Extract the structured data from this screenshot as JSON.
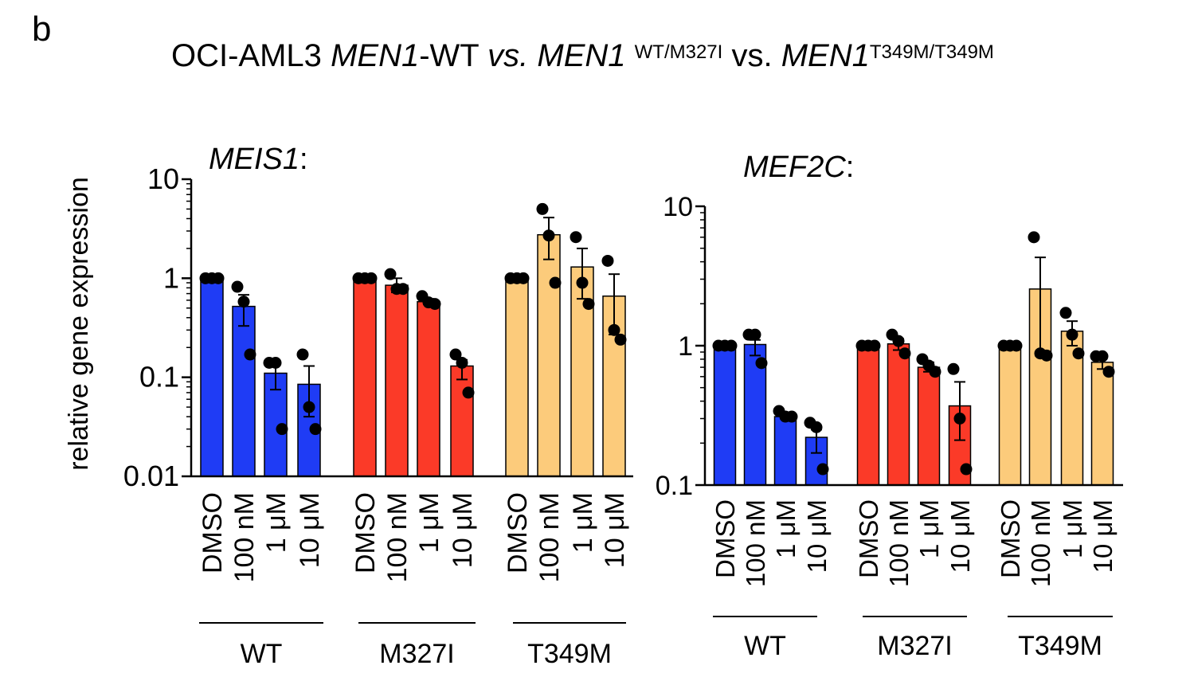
{
  "panel_letter": "b",
  "title": {
    "cell_line": "OCI-AML3",
    "gene1": "MEN1",
    "wt_suffix": "-WT",
    "vs1": "vs.",
    "gene2": "MEN1",
    "sup1": "WT/M327I",
    "vs2": "vs.",
    "gene3": "MEN1",
    "sup2": "T349M/T349M"
  },
  "colors": {
    "WT": "#1f3cf5",
    "M327I": "#fb3a28",
    "T349M": "#fccb7b",
    "dot": "#000000",
    "axis": "#000000"
  },
  "chart_data": [
    {
      "type": "bar",
      "gene_label": "MEIS1",
      "gene_suffix": ":",
      "ylabel": "relative gene expression",
      "yscale": "log",
      "ylim": [
        0.01,
        10
      ],
      "ticks": [
        10,
        1,
        0.1,
        0.01
      ],
      "tick_labels": [
        "10",
        "1",
        "0.1",
        "0.01"
      ],
      "categories": [
        "DMSO",
        "100 nM",
        "1 μM",
        "10 μM"
      ],
      "groups": [
        {
          "name": "WT",
          "color_key": "WT",
          "bars": [
            {
              "mean": 1.0,
              "sem": [
                1.0,
                1.0
              ],
              "points": [
                1.0,
                1.0,
                1.0
              ]
            },
            {
              "mean": 0.52,
              "sem": [
                0.33,
                0.68
              ],
              "points": [
                0.82,
                0.58,
                0.17
              ]
            },
            {
              "mean": 0.11,
              "sem": [
                0.075,
                0.14
              ],
              "points": [
                0.14,
                0.14,
                0.03
              ]
            },
            {
              "mean": 0.085,
              "sem": [
                0.04,
                0.13
              ],
              "points": [
                0.17,
                0.05,
                0.03
              ]
            }
          ]
        },
        {
          "name": "M327I",
          "color_key": "M327I",
          "bars": [
            {
              "mean": 1.0,
              "sem": [
                1.0,
                1.0
              ],
              "points": [
                1.0,
                1.0,
                1.0
              ]
            },
            {
              "mean": 0.85,
              "sem": [
                0.72,
                1.0
              ],
              "points": [
                1.1,
                0.78,
                0.78
              ]
            },
            {
              "mean": 0.58,
              "sem": [
                0.55,
                0.62
              ],
              "points": [
                0.66,
                0.57,
                0.55
              ]
            },
            {
              "mean": 0.13,
              "sem": [
                0.095,
                0.15
              ],
              "points": [
                0.17,
                0.14,
                0.07
              ]
            }
          ]
        },
        {
          "name": "T349M",
          "color_key": "T349M",
          "bars": [
            {
              "mean": 1.0,
              "sem": [
                1.0,
                1.0
              ],
              "points": [
                1.0,
                1.0,
                1.0
              ]
            },
            {
              "mean": 2.75,
              "sem": [
                1.55,
                4.1
              ],
              "points": [
                5.0,
                2.7,
                0.9
              ]
            },
            {
              "mean": 1.3,
              "sem": [
                0.62,
                2.0
              ],
              "points": [
                2.6,
                0.9,
                0.55
              ]
            },
            {
              "mean": 0.66,
              "sem": [
                0.27,
                1.1
              ],
              "points": [
                1.5,
                0.3,
                0.24
              ]
            }
          ]
        }
      ]
    },
    {
      "type": "bar",
      "gene_label": "MEF2C",
      "gene_suffix": ":",
      "ylabel": "",
      "yscale": "log",
      "ylim": [
        0.1,
        10
      ],
      "ticks": [
        10,
        1,
        0.1
      ],
      "tick_labels": [
        "10",
        "1",
        "0.1"
      ],
      "categories": [
        "DMSO",
        "100 nM",
        "1 μM",
        "10 μM"
      ],
      "groups": [
        {
          "name": "WT",
          "color_key": "WT",
          "bars": [
            {
              "mean": 1.0,
              "sem": [
                1.0,
                1.0
              ],
              "points": [
                1.0,
                1.0,
                1.0
              ]
            },
            {
              "mean": 1.02,
              "sem": [
                0.85,
                1.1
              ],
              "points": [
                1.2,
                1.2,
                0.75
              ]
            },
            {
              "mean": 0.31,
              "sem": [
                0.3,
                0.33
              ],
              "points": [
                0.34,
                0.31,
                0.31
              ]
            },
            {
              "mean": 0.22,
              "sem": [
                0.17,
                0.25
              ],
              "points": [
                0.28,
                0.26,
                0.13
              ]
            }
          ]
        },
        {
          "name": "M327I",
          "color_key": "M327I",
          "bars": [
            {
              "mean": 1.0,
              "sem": [
                1.0,
                1.0
              ],
              "points": [
                1.0,
                1.0,
                1.0
              ]
            },
            {
              "mean": 1.03,
              "sem": [
                0.93,
                1.12
              ],
              "points": [
                1.2,
                1.08,
                0.88
              ]
            },
            {
              "mean": 0.7,
              "sem": [
                0.65,
                0.76
              ],
              "points": [
                0.8,
                0.72,
                0.65
              ]
            },
            {
              "mean": 0.37,
              "sem": [
                0.21,
                0.55
              ],
              "points": [
                0.68,
                0.3,
                0.13
              ]
            }
          ]
        },
        {
          "name": "T349M",
          "color_key": "T349M",
          "bars": [
            {
              "mean": 1.0,
              "sem": [
                1.0,
                1.0
              ],
              "points": [
                1.0,
                1.0,
                1.0
              ]
            },
            {
              "mean": 2.55,
              "sem": [
                0.85,
                4.3
              ],
              "points": [
                6.0,
                0.88,
                0.85
              ]
            },
            {
              "mean": 1.27,
              "sem": [
                1.0,
                1.5
              ],
              "points": [
                1.72,
                1.2,
                0.88
              ]
            },
            {
              "mean": 0.76,
              "sem": [
                0.68,
                0.84
              ],
              "points": [
                0.84,
                0.84,
                0.65
              ]
            }
          ]
        }
      ]
    }
  ]
}
